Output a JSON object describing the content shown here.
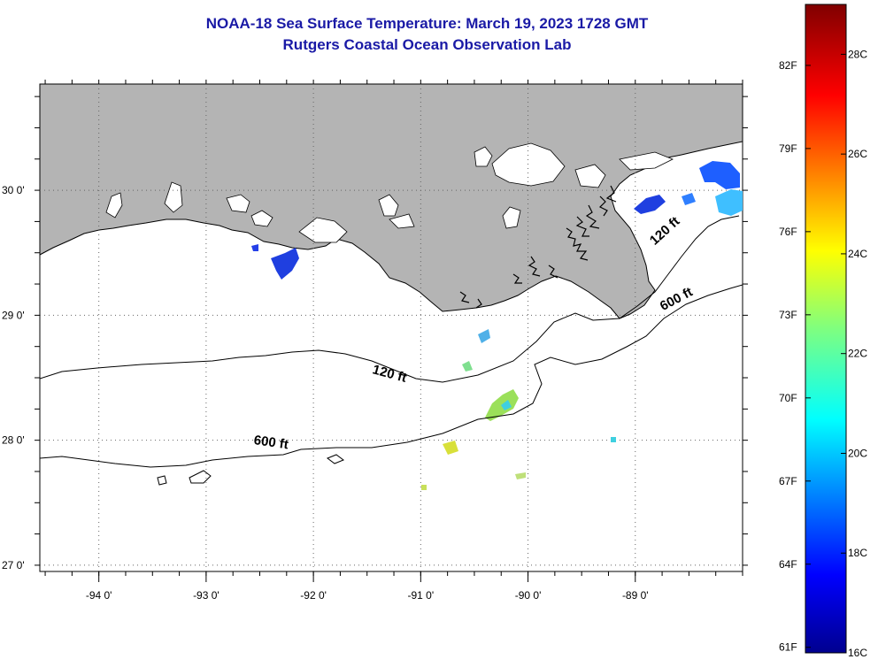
{
  "title": {
    "line1": "NOAA-18 Sea Surface Temperature:  March 19, 2023 1728 GMT",
    "line2": "Rutgers Coastal Ocean Observation Lab"
  },
  "map": {
    "lon_ticks": [
      {
        "value": -94,
        "label": "-94 0'"
      },
      {
        "value": -93,
        "label": "-93 0'"
      },
      {
        "value": -92,
        "label": "-92 0'"
      },
      {
        "value": -91,
        "label": "-91 0'"
      },
      {
        "value": -90,
        "label": "-90 0'"
      },
      {
        "value": -89,
        "label": "-89 0'"
      }
    ],
    "lat_ticks": [
      {
        "value": 30,
        "label": "30 0'"
      },
      {
        "value": 29,
        "label": "29 0'"
      },
      {
        "value": 28,
        "label": "28 0'"
      },
      {
        "value": 27,
        "label": "27 0'"
      }
    ],
    "lon_range": [
      -94.55,
      -88.0
    ],
    "lat_range": [
      26.95,
      30.85
    ],
    "contour_labels": [
      {
        "text": "120 ft",
        "lon": -91.3,
        "lat": 28.5,
        "angle": 15
      },
      {
        "text": "600 ft",
        "lon": -92.4,
        "lat": 27.95,
        "angle": 8
      },
      {
        "text": "120 ft",
        "lon": -88.7,
        "lat": 29.65,
        "angle": -42
      },
      {
        "text": "600 ft",
        "lon": -88.6,
        "lat": 29.1,
        "angle": -28
      }
    ],
    "land_color": "#b4b4b4",
    "ocean_color": "#ffffff"
  },
  "colorbar": {
    "f_labels": [
      "82F",
      "79F",
      "76F",
      "73F",
      "70F",
      "67F",
      "64F",
      "61F"
    ],
    "c_labels": [
      "28C",
      "26C",
      "24C",
      "22C",
      "20C",
      "18C",
      "16C"
    ],
    "min_c": 16,
    "max_c": 29
  }
}
